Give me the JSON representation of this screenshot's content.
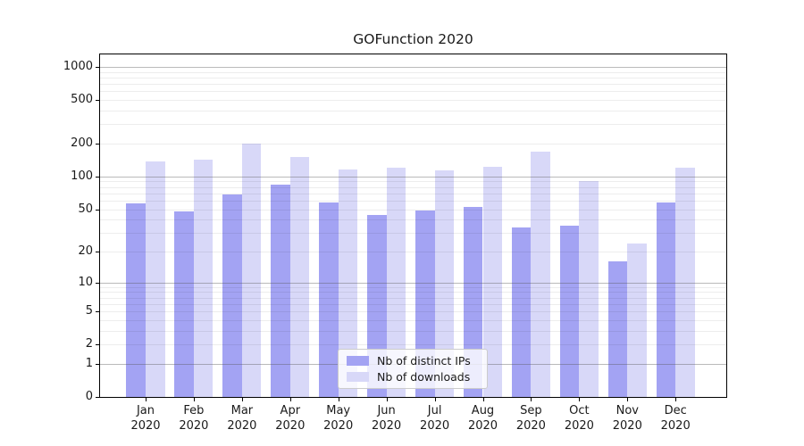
{
  "chart_data": {
    "type": "bar",
    "title": "GOFunction 2020",
    "categories": [
      "Jan",
      "Feb",
      "Mar",
      "Apr",
      "May",
      "Jun",
      "Jul",
      "Aug",
      "Sep",
      "Oct",
      "Nov",
      "Dec"
    ],
    "category_year": "2020",
    "series": [
      {
        "name": "Nb of distinct IPs",
        "color": "#a3a3f3",
        "values": [
          57,
          48,
          69,
          84,
          58,
          44,
          49,
          52,
          34,
          35,
          16,
          58
        ]
      },
      {
        "name": "Nb of downloads",
        "color": "#d8d8f8",
        "values": [
          138,
          143,
          200,
          152,
          116,
          120,
          114,
          122,
          170,
          90,
          24,
          121
        ]
      }
    ],
    "xlabel": "",
    "ylabel": "",
    "yscale": "log1p",
    "y_ticks": [
      0,
      1,
      2,
      5,
      10,
      20,
      50,
      100,
      200,
      500,
      1000
    ],
    "y_major_gridlines": [
      1,
      10,
      100,
      1000
    ],
    "y_axis_min": 0,
    "y_axis_max": 1300,
    "grid": true,
    "legend_position": "lower-center"
  },
  "colors": {
    "major_gridline": "#b3b3b3",
    "minor_gridline": "#ededed",
    "spine": "#000000",
    "text": "#1a1a1a",
    "background": "#ffffff"
  }
}
